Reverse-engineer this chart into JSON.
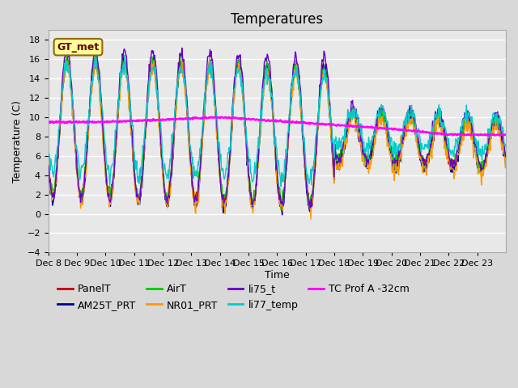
{
  "title": "Temperatures",
  "xlabel": "Time",
  "ylabel": "Temperature (C)",
  "ylim": [
    -4,
    19
  ],
  "series_colors": {
    "PanelT": "#cc0000",
    "AM25T_PRT": "#000099",
    "AirT": "#00cc00",
    "NR01_PRT": "#ff9900",
    "li75_t": "#6600cc",
    "li77_temp": "#00cccc",
    "TC_Prof_A": "#ff00ff"
  },
  "x_tick_labels": [
    "Dec 8",
    "Dec 9",
    "Dec 10",
    "Dec 11",
    "Dec 12",
    "Dec 13",
    "Dec 14",
    "Dec 15",
    "Dec 16",
    "Dec 17",
    "Dec 18",
    "Dec 19",
    "Dec 20",
    "Dec 21",
    "Dec 22",
    "Dec 23"
  ],
  "yticks": [
    -4,
    -2,
    0,
    2,
    4,
    6,
    8,
    10,
    12,
    14,
    16,
    18
  ],
  "gt_met_box_color": "#ffff99",
  "gt_met_text_color": "#660000",
  "gt_met_border_color": "#996600",
  "title_fontsize": 12,
  "axis_fontsize": 9,
  "tick_fontsize": 8,
  "legend_fontsize": 9
}
